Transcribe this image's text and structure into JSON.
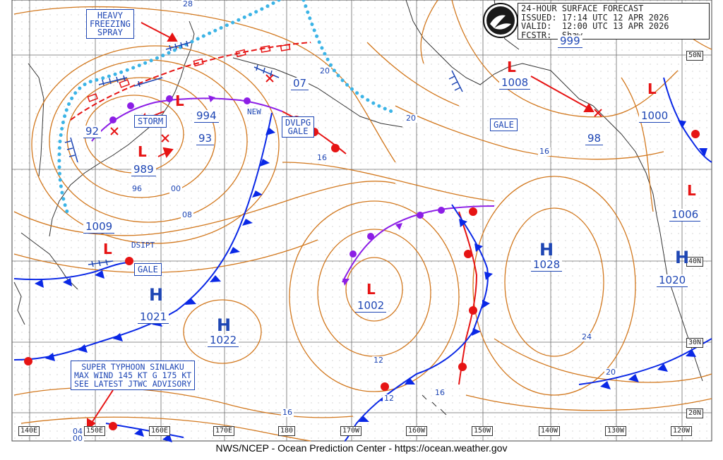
{
  "header": {
    "title": "24-HOUR SURFACE FORECAST",
    "issued_label": "ISSUED:",
    "issued": "17:14 UTC 12 APR 2026",
    "valid_label": "VALID:",
    "valid": "12:00 UTC 13 APR 2026",
    "forecaster_label": "FCSTR:",
    "forecaster": "Shaw"
  },
  "logo": {
    "text": "NOAA"
  },
  "footer": "NWS/NCEP - Ocean Prediction Center - https://ocean.weather.gov",
  "lon_labels": [
    "140E",
    "150E",
    "160E",
    "170E",
    "180",
    "170W",
    "160W",
    "150W",
    "140W",
    "130W",
    "120W"
  ],
  "lat_labels": [
    "50N",
    "40N",
    "30N",
    "20N"
  ],
  "pressure_centers": [
    {
      "type": "L",
      "pressure": "989"
    },
    {
      "type": "L",
      "pressure": "994"
    },
    {
      "type": "L",
      "pressure": "1002"
    },
    {
      "type": "L",
      "pressure": "1000"
    },
    {
      "type": "L",
      "pressure": "1006"
    },
    {
      "type": "L",
      "pressure": "1008"
    },
    {
      "type": "L",
      "pressure": "1009"
    },
    {
      "type": "L",
      "pressure": "92"
    },
    {
      "type": "L",
      "pressure": "93"
    },
    {
      "type": "L",
      "pressure": "98"
    },
    {
      "type": "H",
      "pressure": "1021"
    },
    {
      "type": "H",
      "pressure": "1022"
    },
    {
      "type": "H",
      "pressure": "1028"
    },
    {
      "type": "H",
      "pressure": "1020"
    },
    {
      "type": "L",
      "pressure": "07"
    },
    {
      "type": "L",
      "pressure": "999"
    }
  ],
  "isobar_labels": [
    "96",
    "00",
    "08",
    "16",
    "20",
    "12",
    "16",
    "12",
    "16",
    "24",
    "20",
    "20",
    "16",
    "04",
    "00",
    "28"
  ],
  "warnings": {
    "heavy_freezing_spray": [
      "HEAVY",
      "FREEZING",
      "SPRAY"
    ],
    "storm": "STORM",
    "dvlpg_gale": [
      "DVLPG",
      "GALE"
    ],
    "gale_1": "GALE",
    "gale_2": "GALE",
    "new": "NEW",
    "dsipt": "DSIPT"
  },
  "typhoon": {
    "lines": [
      "SUPER TYPHOON SINLAKU",
      "MAX WIND 145 KT G 175 KT",
      "SEE LATEST JTWC ADVISORY"
    ]
  },
  "colors": {
    "isobar": "#d2781e",
    "cold_front": "#0a28e6",
    "warm_front": "#e61414",
    "occluded_front": "#8c1ee6",
    "ice_edge": "#3cb4e6",
    "low": "#e61414",
    "high": "#1e46b4",
    "text_box": "#1e46b4",
    "grid": "#777777"
  }
}
